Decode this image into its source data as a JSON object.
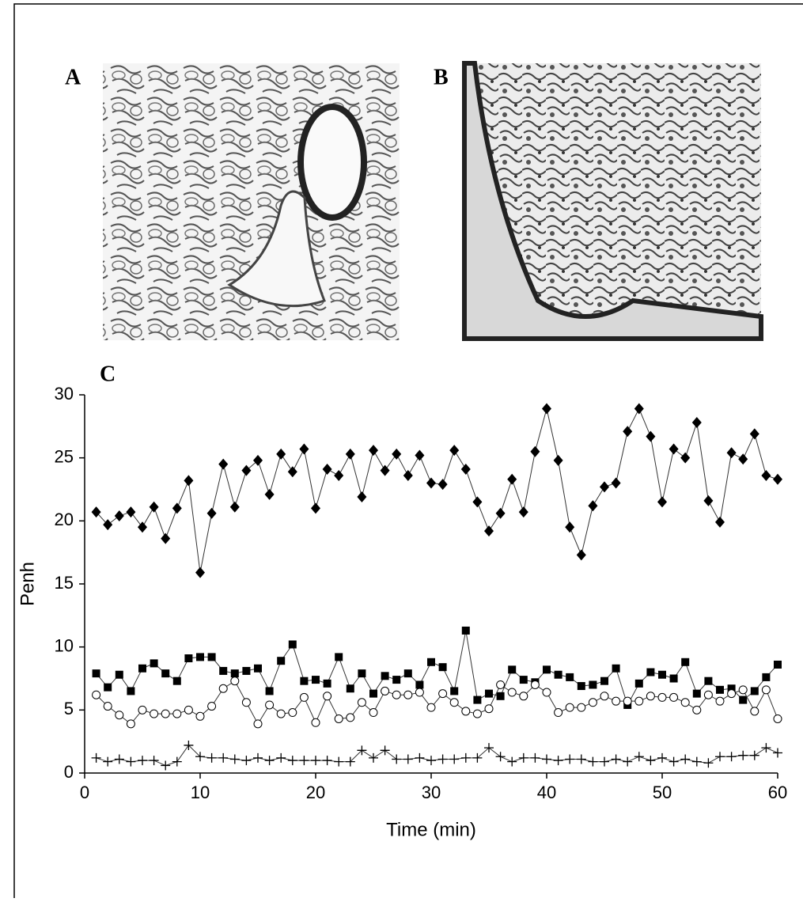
{
  "figure": {
    "panel_labels": [
      "A",
      "B",
      "C"
    ]
  },
  "chart_data": {
    "type": "line",
    "x_label": "Time (min)",
    "y_label": "Penh",
    "xlim": [
      0,
      60
    ],
    "xticks": [
      0,
      10,
      20,
      30,
      40,
      50,
      60
    ],
    "ylim": [
      0,
      30
    ],
    "yticks": [
      0,
      5,
      10,
      15,
      20,
      25,
      30
    ],
    "grid": false,
    "x": [
      1,
      2,
      3,
      4,
      5,
      6,
      7,
      8,
      9,
      10,
      11,
      12,
      13,
      14,
      15,
      16,
      17,
      18,
      19,
      20,
      21,
      22,
      23,
      24,
      25,
      26,
      27,
      28,
      29,
      30,
      31,
      32,
      33,
      34,
      35,
      36,
      37,
      38,
      39,
      40,
      41,
      42,
      43,
      44,
      45,
      46,
      47,
      48,
      49,
      50,
      51,
      52,
      53,
      54,
      55,
      56,
      57,
      58,
      59,
      60
    ],
    "series": [
      {
        "color": "#000000",
        "marker": "diamond",
        "values": [
          20.7,
          19.7,
          20.4,
          20.7,
          19.5,
          21.1,
          18.6,
          21.0,
          23.2,
          15.9,
          20.6,
          24.5,
          21.1,
          24.0,
          24.8,
          22.1,
          25.3,
          23.9,
          25.7,
          21.0,
          24.1,
          23.6,
          25.3,
          21.9,
          25.6,
          24.0,
          25.3,
          23.6,
          25.2,
          23.0,
          22.9,
          25.6,
          24.1,
          21.5,
          19.2,
          20.6,
          23.3,
          20.7,
          25.5,
          28.9,
          24.8,
          19.5,
          17.3,
          21.2,
          22.7,
          23.0,
          27.1,
          28.9,
          26.7,
          21.5,
          25.7,
          25.0,
          27.8,
          21.6,
          19.9,
          25.4,
          24.9,
          26.9,
          23.6,
          23.3
        ]
      },
      {
        "color": "#000000",
        "marker": "square",
        "values": [
          7.9,
          6.8,
          7.8,
          6.5,
          8.3,
          8.7,
          7.9,
          7.3,
          9.1,
          9.2,
          9.2,
          8.1,
          7.9,
          8.1,
          8.3,
          6.5,
          8.9,
          10.2,
          7.3,
          7.4,
          7.1,
          9.2,
          6.7,
          7.9,
          6.3,
          7.7,
          7.4,
          7.9,
          7.0,
          8.8,
          8.4,
          6.5,
          11.3,
          5.8,
          6.3,
          6.1,
          8.2,
          7.4,
          7.2,
          8.2,
          7.8,
          7.6,
          6.9,
          7.0,
          7.3,
          8.3,
          5.4,
          7.1,
          8.0,
          7.8,
          7.5,
          8.8,
          6.3,
          7.3,
          6.6,
          6.7,
          5.8,
          6.5,
          7.6,
          8.6
        ]
      },
      {
        "color": "#000000",
        "marker": "circle",
        "values": [
          6.2,
          5.3,
          4.6,
          3.9,
          5.0,
          4.7,
          4.7,
          4.7,
          5.0,
          4.5,
          5.3,
          6.7,
          7.3,
          5.6,
          3.9,
          5.4,
          4.7,
          4.8,
          6.0,
          4.0,
          6.1,
          4.3,
          4.4,
          5.6,
          4.8,
          6.5,
          6.2,
          6.2,
          6.4,
          5.2,
          6.3,
          5.6,
          4.9,
          4.7,
          5.1,
          7.0,
          6.4,
          6.1,
          7.0,
          6.4,
          4.8,
          5.2,
          5.2,
          5.6,
          6.1,
          5.7,
          5.7,
          5.7,
          6.1,
          6.0,
          6.0,
          5.6,
          5.0,
          6.2,
          5.7,
          6.3,
          6.6,
          4.9,
          6.6,
          4.3
        ]
      },
      {
        "color": "#000000",
        "marker": "plus",
        "values": [
          1.2,
          0.9,
          1.1,
          0.9,
          1.0,
          1.0,
          0.6,
          0.9,
          2.2,
          1.3,
          1.2,
          1.2,
          1.1,
          1.0,
          1.2,
          1.0,
          1.2,
          1.0,
          1.0,
          1.0,
          1.0,
          0.9,
          0.9,
          1.8,
          1.2,
          1.8,
          1.1,
          1.1,
          1.2,
          1.0,
          1.1,
          1.1,
          1.2,
          1.2,
          2.0,
          1.3,
          0.9,
          1.2,
          1.2,
          1.1,
          1.0,
          1.1,
          1.1,
          0.9,
          0.9,
          1.1,
          0.9,
          1.3,
          1.0,
          1.2,
          0.9,
          1.1,
          0.9,
          0.8,
          1.3,
          1.3,
          1.4,
          1.4,
          2.0,
          1.6
        ]
      }
    ]
  }
}
